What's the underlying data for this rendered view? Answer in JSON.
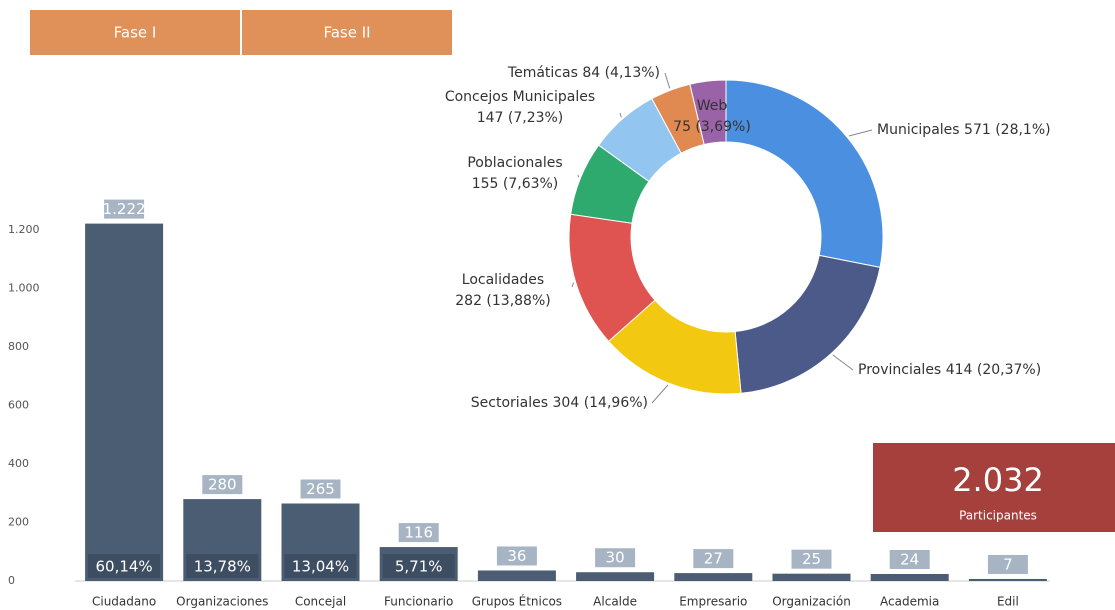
{
  "tabs": [
    "Fase I",
    "Fase II"
  ],
  "kpi": {
    "value": "2.032",
    "label": "Participantes"
  },
  "chart_data": [
    {
      "type": "bar",
      "categories": [
        "Ciudadano",
        "Organizaciones",
        "Concejal",
        "Funcionario",
        "Grupos Étnicos",
        "Alcalde",
        "Empresario",
        "Organización",
        "Academia",
        "Edil"
      ],
      "values": [
        1222,
        280,
        265,
        116,
        36,
        30,
        27,
        25,
        24,
        7
      ],
      "value_labels": [
        "1.222",
        "280",
        "265",
        "116",
        "36",
        "30",
        "27",
        "25",
        "24",
        "7"
      ],
      "share_labels": [
        "60,14%",
        "13,78%",
        "13,04%",
        "5,71%",
        null,
        null,
        null,
        null,
        null,
        null
      ],
      "color": "#4a5d73",
      "ylim": [
        0,
        1300
      ],
      "yticks": [
        0,
        200,
        400,
        600,
        800,
        {
          "value": 1000,
          "label": "1.000"
        },
        {
          "value": 1200,
          "label": "1.200"
        }
      ],
      "grid": false
    },
    {
      "type": "pie",
      "categories": [
        "Municipales",
        "Provinciales",
        "Sectoriales",
        "Localidades",
        "Poblacionales",
        "Concejos Municipales",
        "Temáticas",
        "Web"
      ],
      "values": [
        571,
        414,
        304,
        282,
        155,
        147,
        84,
        75
      ],
      "value_labels": [
        "571 (28,1%)",
        "414 (20,37%)",
        "304 (14,96%)",
        "282 (13,88%)",
        "155 (7,63%)",
        "147 (7,23%)",
        "84 (4,13%)",
        "75 (3,69%)"
      ],
      "colors": [
        "#4a8fe0",
        "#4c5a8a",
        "#f2c811",
        "#df5450",
        "#2eaa6e",
        "#92c5ef",
        "#e08a52",
        "#9a63a8"
      ]
    }
  ]
}
